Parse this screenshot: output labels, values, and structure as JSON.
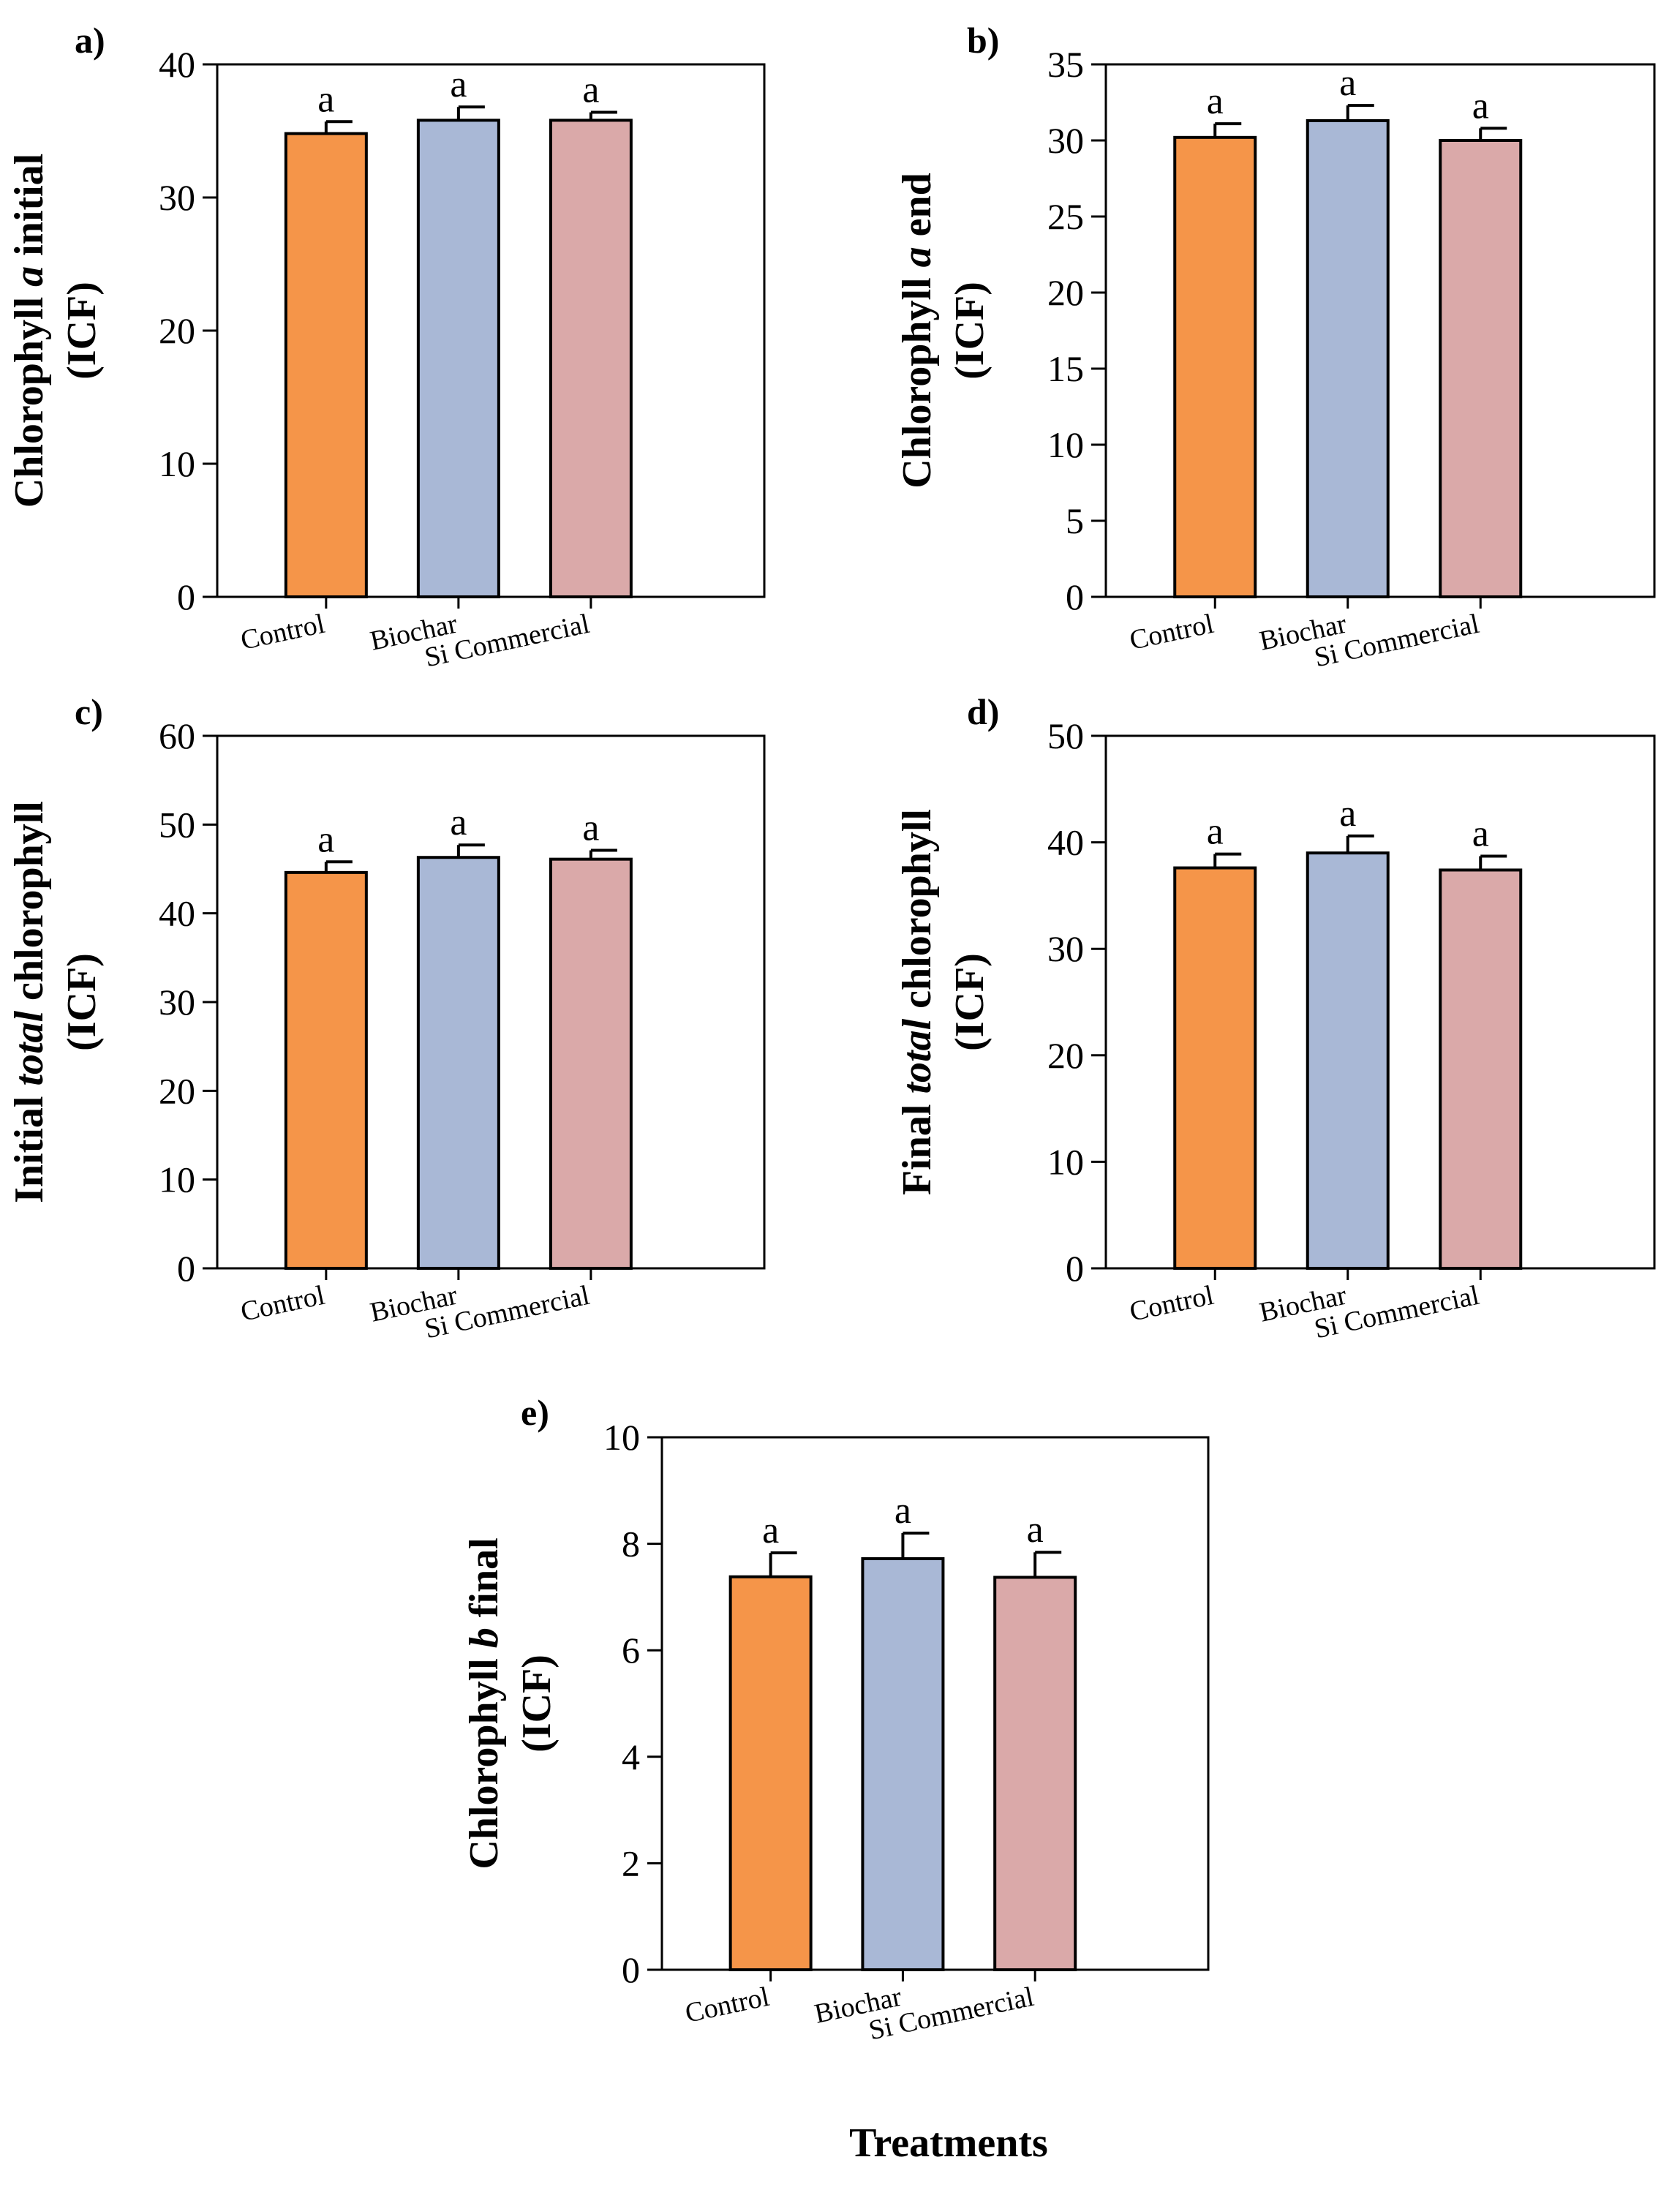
{
  "figure": {
    "x_title": "Treatments",
    "category_labels": [
      "Control",
      "Biochar",
      "Si Commercial"
    ],
    "bar_colors": [
      "#F59549",
      "#A9B8D6",
      "#DAA9A9"
    ]
  },
  "chart_data": [
    {
      "panel": "a)",
      "type": "bar",
      "categories": [
        "Control",
        "Biochar",
        "Si Commercial"
      ],
      "values": [
        34.8,
        35.8,
        35.8
      ],
      "errors": [
        0.9,
        1.0,
        0.6
      ],
      "letters": [
        "a",
        "a",
        "a"
      ],
      "ylabel_line1": [
        "Chlorophyll ",
        "a",
        " initial"
      ],
      "ylabel_line2": "(ICF)",
      "ylim": [
        0,
        40
      ],
      "yticks": [
        0,
        10,
        20,
        30,
        40
      ]
    },
    {
      "panel": "b)",
      "type": "bar",
      "categories": [
        "Control",
        "Biochar",
        "Si Commercial"
      ],
      "values": [
        30.2,
        31.3,
        30.0
      ],
      "errors": [
        0.9,
        1.0,
        0.8
      ],
      "letters": [
        "a",
        "a",
        "a"
      ],
      "ylabel_line1": [
        "Chlorophyll ",
        "a",
        " end"
      ],
      "ylabel_line2": "(ICF)",
      "ylim": [
        0,
        35
      ],
      "yticks": [
        0,
        5,
        10,
        15,
        20,
        25,
        30,
        35
      ]
    },
    {
      "panel": "c)",
      "type": "bar",
      "categories": [
        "Control",
        "Biochar",
        "Si Commercial"
      ],
      "values": [
        44.6,
        46.3,
        46.1
      ],
      "errors": [
        1.2,
        1.4,
        1.0
      ],
      "letters": [
        "a",
        "a",
        "a"
      ],
      "ylabel_line1": [
        "Initial ",
        "total",
        " chlorophyll"
      ],
      "ylabel_line2": "(ICF)",
      "ylim": [
        0,
        60
      ],
      "yticks": [
        0,
        10,
        20,
        30,
        40,
        50,
        60
      ]
    },
    {
      "panel": "d)",
      "type": "bar",
      "categories": [
        "Control",
        "Biochar",
        "Si Commercial"
      ],
      "values": [
        37.6,
        39.0,
        37.4
      ],
      "errors": [
        1.3,
        1.6,
        1.3
      ],
      "letters": [
        "a",
        "a",
        "a"
      ],
      "ylabel_line1": [
        "Final ",
        "total",
        " chlorophyll"
      ],
      "ylabel_line2": "(ICF)",
      "ylim": [
        0,
        50
      ],
      "yticks": [
        0,
        10,
        20,
        30,
        40,
        50
      ]
    },
    {
      "panel": "e)",
      "type": "bar",
      "categories": [
        "Control",
        "Biochar",
        "Si Commercial"
      ],
      "values": [
        7.38,
        7.72,
        7.37
      ],
      "errors": [
        0.45,
        0.48,
        0.47
      ],
      "letters": [
        "a",
        "a",
        "a"
      ],
      "ylabel_line1": [
        "Chlorophyll ",
        "b",
        " final"
      ],
      "ylabel_line2": "(ICF)",
      "ylim": [
        0,
        10
      ],
      "yticks": [
        0,
        2,
        4,
        6,
        8,
        10
      ]
    }
  ]
}
